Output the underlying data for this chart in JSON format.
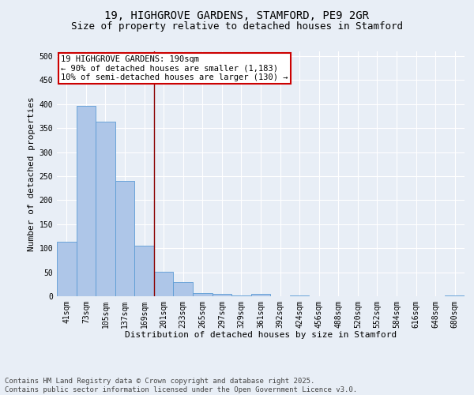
{
  "title_line1": "19, HIGHGROVE GARDENS, STAMFORD, PE9 2GR",
  "title_line2": "Size of property relative to detached houses in Stamford",
  "xlabel": "Distribution of detached houses by size in Stamford",
  "ylabel": "Number of detached properties",
  "categories": [
    "41sqm",
    "73sqm",
    "105sqm",
    "137sqm",
    "169sqm",
    "201sqm",
    "233sqm",
    "265sqm",
    "297sqm",
    "329sqm",
    "361sqm",
    "392sqm",
    "424sqm",
    "456sqm",
    "488sqm",
    "520sqm",
    "552sqm",
    "584sqm",
    "616sqm",
    "648sqm",
    "680sqm"
  ],
  "values": [
    113,
    397,
    364,
    241,
    105,
    51,
    29,
    7,
    5,
    2,
    5,
    0,
    1,
    0,
    0,
    0,
    0,
    0,
    0,
    0,
    1
  ],
  "bar_color": "#aec6e8",
  "bar_edge_color": "#5b9bd5",
  "vline_x": 4.5,
  "vline_color": "#8b0000",
  "annotation_line1": "19 HIGHGROVE GARDENS: 190sqm",
  "annotation_line2": "← 90% of detached houses are smaller (1,183)",
  "annotation_line3": "10% of semi-detached houses are larger (130) →",
  "annotation_box_color": "#ffffff",
  "annotation_box_edge_color": "#cc0000",
  "ylim": [
    0,
    510
  ],
  "yticks": [
    0,
    50,
    100,
    150,
    200,
    250,
    300,
    350,
    400,
    450,
    500
  ],
  "footer_line1": "Contains HM Land Registry data © Crown copyright and database right 2025.",
  "footer_line2": "Contains public sector information licensed under the Open Government Licence v3.0.",
  "bg_color": "#e8eef6",
  "plot_bg_color": "#e8eef6",
  "grid_color": "#ffffff",
  "title_fontsize": 10,
  "subtitle_fontsize": 9,
  "axis_label_fontsize": 8,
  "tick_fontsize": 7,
  "annotation_fontsize": 7.5,
  "footer_fontsize": 6.5
}
